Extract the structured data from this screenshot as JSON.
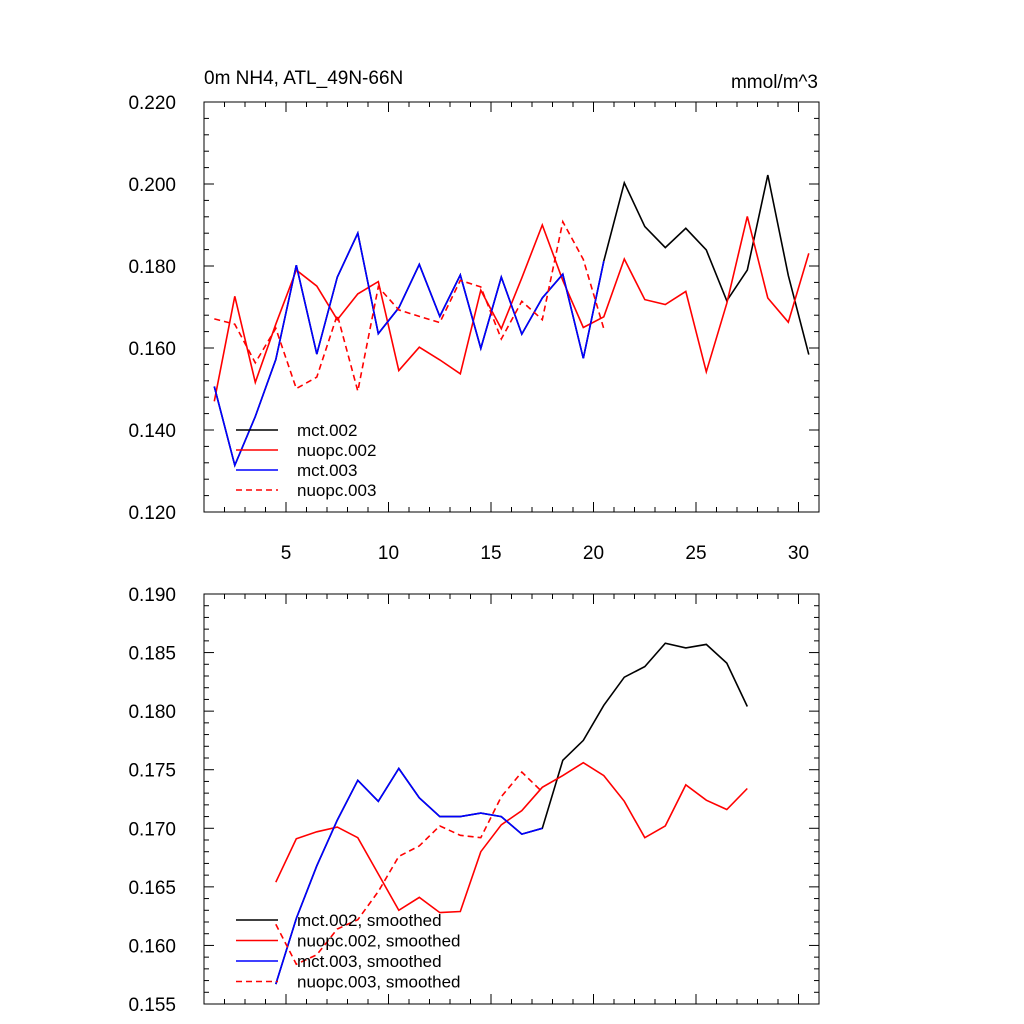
{
  "chart_data": [
    {
      "type": "line",
      "title_left": "0m NH4, ATL_49N-66N",
      "title_right": "mmol/m^3",
      "xlim": [
        1,
        31
      ],
      "ylim": [
        0.12,
        0.22
      ],
      "x_ticks": [
        5,
        10,
        15,
        20,
        25,
        30
      ],
      "x_tick_labels": [
        "5",
        "10",
        "15",
        "20",
        "25",
        "30"
      ],
      "y_ticks": [
        0.12,
        0.14,
        0.16,
        0.18,
        0.2,
        0.22
      ],
      "y_tick_labels": [
        "0.120",
        "0.140",
        "0.160",
        "0.180",
        "0.200",
        "0.220"
      ],
      "legend_position": "bottom-left",
      "series": [
        {
          "name": "mct.002",
          "color": "#000000",
          "dash": "solid",
          "x_start": 1.5,
          "values": [
            0.1506,
            0.1314,
            0.1433,
            0.1572,
            0.1802,
            0.1585,
            0.1773,
            0.188,
            0.1635,
            0.1698,
            0.1804,
            0.1677,
            0.1778,
            0.1599,
            0.1773,
            0.1634,
            0.1722,
            0.178,
            0.1575,
            0.1812,
            0.2003,
            0.1896,
            0.1845,
            0.1892,
            0.1839,
            0.1715,
            0.179,
            0.2022,
            0.1777,
            0.1584
          ]
        },
        {
          "name": "nuopc.002",
          "color": "#ff0000",
          "dash": "solid",
          "x_start": 1.5,
          "values": [
            0.147,
            0.1726,
            0.1516,
            0.1658,
            0.179,
            0.1751,
            0.1669,
            0.1732,
            0.1762,
            0.1545,
            0.1602,
            0.1571,
            0.1537,
            0.1741,
            0.1647,
            0.1771,
            0.19,
            0.1765,
            0.165,
            0.1676,
            0.1817,
            0.1718,
            0.1706,
            0.1738,
            0.1542,
            0.1709,
            0.1921,
            0.1722,
            0.1663,
            0.1831
          ]
        },
        {
          "name": "mct.003",
          "color": "#0000ff",
          "dash": "solid",
          "x_start": 1.5,
          "values": [
            0.1506,
            0.1314,
            0.1433,
            0.1572,
            0.1802,
            0.1585,
            0.1773,
            0.188,
            0.1635,
            0.1698,
            0.1804,
            0.1677,
            0.1778,
            0.1599,
            0.1773,
            0.1634,
            0.1722,
            0.178,
            0.1575,
            0.1812
          ]
        },
        {
          "name": "nuopc.003",
          "color": "#ff0000",
          "dash": "dashed",
          "x_start": 1.5,
          "values": [
            0.1671,
            0.1658,
            0.1564,
            0.1648,
            0.1501,
            0.1529,
            0.1681,
            0.1495,
            0.1749,
            0.1693,
            0.1677,
            0.1662,
            0.1765,
            0.1749,
            0.1622,
            0.1714,
            0.1669,
            0.1908,
            0.1816,
            0.1647
          ]
        }
      ]
    },
    {
      "type": "line",
      "xlim": [
        1,
        31
      ],
      "ylim": [
        0.155,
        0.19
      ],
      "x_ticks": [
        5,
        10,
        15,
        20,
        25,
        30
      ],
      "y_ticks": [
        0.155,
        0.16,
        0.165,
        0.17,
        0.175,
        0.18,
        0.185,
        0.19
      ],
      "y_tick_labels": [
        "0.155",
        "0.160",
        "0.165",
        "0.170",
        "0.175",
        "0.180",
        "0.185",
        "0.190"
      ],
      "legend_position": "bottom-left",
      "series": [
        {
          "name": "mct.002, smoothed",
          "color": "#000000",
          "dash": "solid",
          "x_start": 4.5,
          "values": [
            0.1567,
            0.1623,
            0.1668,
            0.1707,
            0.1741,
            0.1723,
            0.1751,
            0.1726,
            0.171,
            0.171,
            0.1713,
            0.171,
            0.1695,
            0.17,
            0.1758,
            0.1775,
            0.1805,
            0.1829,
            0.1838,
            0.1858,
            0.1854,
            0.1857,
            0.1841,
            0.1804
          ]
        },
        {
          "name": "nuopc.002, smoothed",
          "color": "#ff0000",
          "dash": "solid",
          "x_start": 4.5,
          "values": [
            0.1654,
            0.1691,
            0.1697,
            0.1701,
            0.1692,
            0.1661,
            0.163,
            0.1641,
            0.1628,
            0.1629,
            0.168,
            0.1703,
            0.1715,
            0.1735,
            0.1745,
            0.1756,
            0.1745,
            0.1723,
            0.1692,
            0.1702,
            0.1737,
            0.1724,
            0.1716,
            0.1734
          ]
        },
        {
          "name": "mct.003, smoothed",
          "color": "#0000ff",
          "dash": "solid",
          "x_start": 4.5,
          "values": [
            0.1567,
            0.1623,
            0.1668,
            0.1707,
            0.1741,
            0.1723,
            0.1751,
            0.1726,
            0.171,
            0.171,
            0.1713,
            0.171,
            0.1695,
            0.17
          ]
        },
        {
          "name": "nuopc.003, smoothed",
          "color": "#ff0000",
          "dash": "dashed",
          "x_start": 4.5,
          "values": [
            0.1618,
            0.1584,
            0.1592,
            0.1614,
            0.1622,
            0.1646,
            0.1676,
            0.1685,
            0.1702,
            0.1694,
            0.1692,
            0.1727,
            0.1748,
            0.1731
          ]
        }
      ]
    }
  ]
}
